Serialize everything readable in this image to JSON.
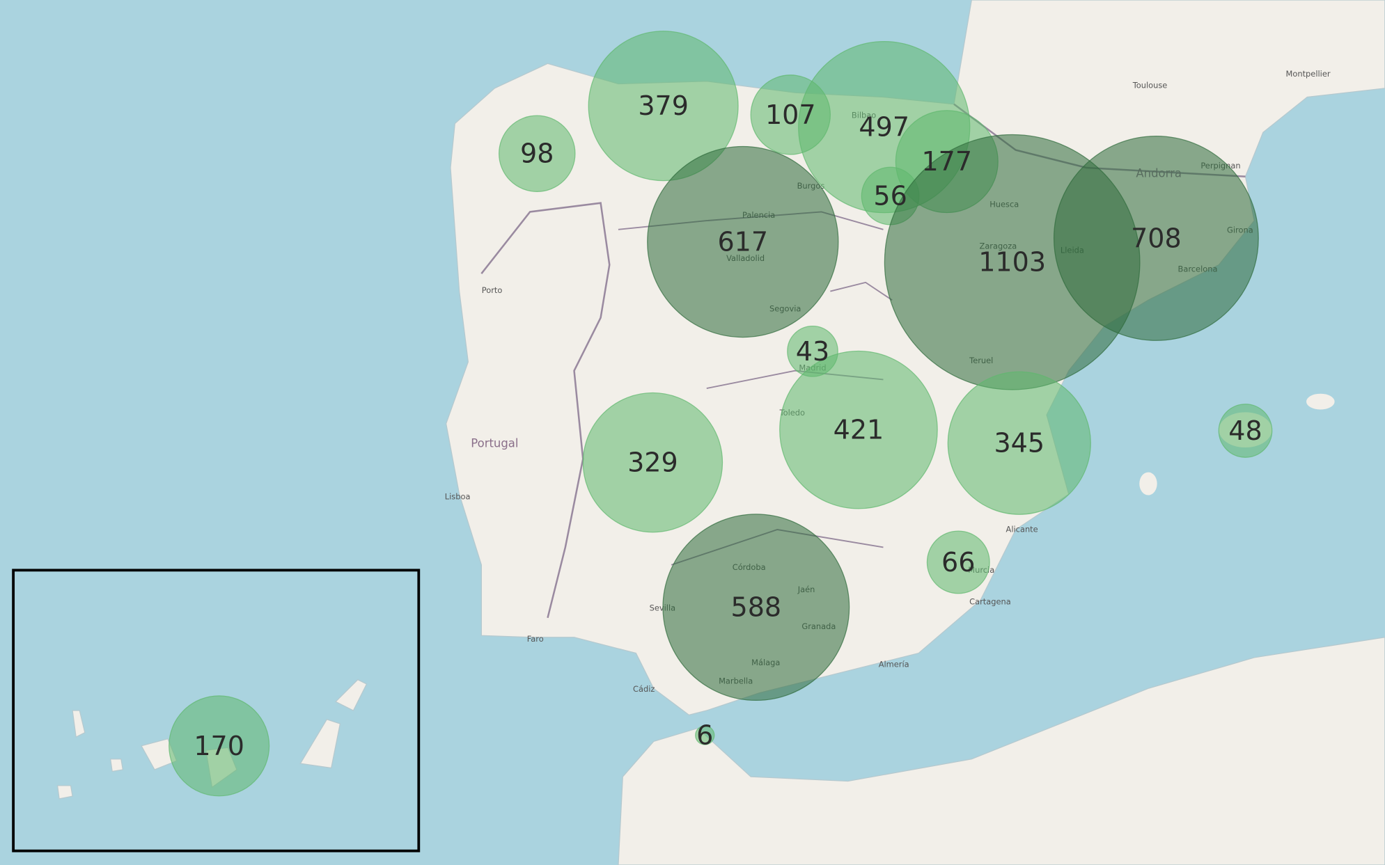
{
  "bubbles": {
    "values": [
      98,
      379,
      107,
      497,
      177,
      56,
      617,
      1103,
      708,
      43,
      421,
      345,
      329,
      66,
      588,
      6,
      48,
      170
    ],
    "colors": [
      "#5fb86e",
      "#5fb86e",
      "#5fb86e",
      "#5fb86e",
      "#5fb86e",
      "#5fb86e",
      "#2f6b3c",
      "#2f6b3c",
      "#2f6b3c",
      "#5fb86e",
      "#5fb86e",
      "#5fb86e",
      "#5fb86e",
      "#5fb86e",
      "#2f6b3c",
      "#5fb86e",
      "#5fb86e",
      "#5fb86e"
    ]
  },
  "places": [
    "Portugal",
    "Andorra",
    "Toulouse",
    "Montpellier",
    "Perpignan",
    "Zaragoza",
    "Barcelona",
    "Madrid",
    "Sevilla",
    "Málaga",
    "Lisboa",
    "Porto",
    "Valladolid",
    "Granada",
    "Murcia",
    "Alicante",
    "Córdoba",
    "Bilbao",
    "Girona",
    "Huesca",
    "Teruel",
    "Palencia",
    "Segovia",
    "Toledo",
    "Almería",
    "Cartagena",
    "Marbella",
    "Faro",
    "Cádiz",
    "Jaén",
    "Burgos",
    "Lleida"
  ]
}
